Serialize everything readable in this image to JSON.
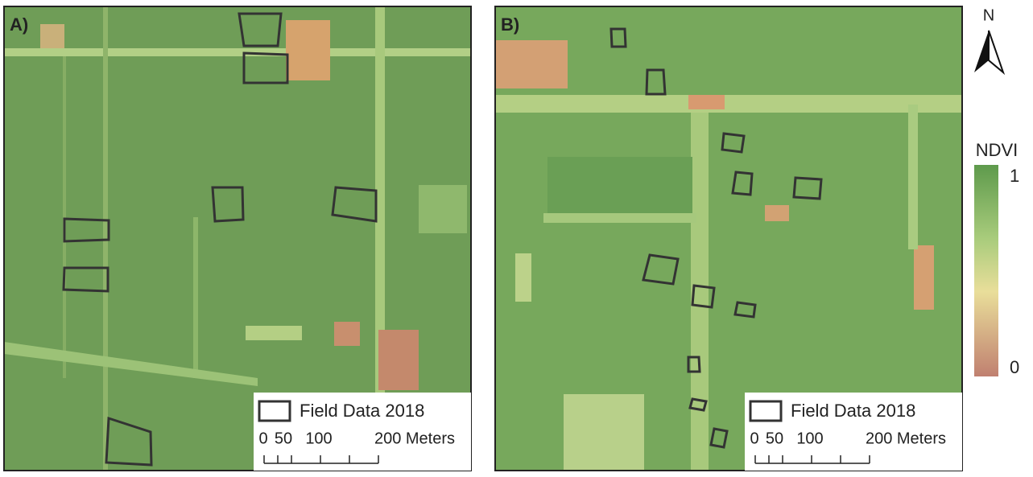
{
  "panels": [
    {
      "label": "A)",
      "legend_label": "Field Data 2018",
      "scale_labels": [
        "0",
        "50",
        "100",
        "200 Meters"
      ]
    },
    {
      "label": "B)",
      "legend_label": "Field Data 2018",
      "scale_labels": [
        "0",
        "50",
        "100",
        "200 Meters"
      ]
    }
  ],
  "north_label": "N",
  "colorbar": {
    "title": "NDVI",
    "max_label": "1",
    "min_label": "0"
  }
}
